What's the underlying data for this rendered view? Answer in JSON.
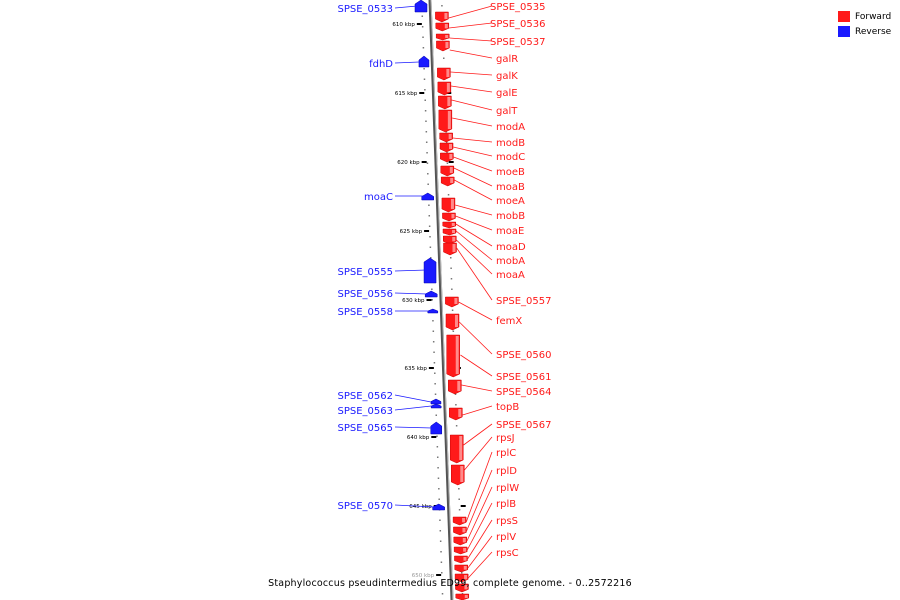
{
  "colors": {
    "forward": "#ff1a1a",
    "reverse": "#1a1aff",
    "axis": "#888888"
  },
  "legend": [
    {
      "label": "Forward",
      "color": "#ff1a1a"
    },
    {
      "label": "Reverse",
      "color": "#1a1aff"
    }
  ],
  "caption": "Staphylococcus pseudintermedius ED99, complete genome. - 0..2572216",
  "ticks": [
    "610 kbp",
    "615 kbp",
    "620 kbp",
    "625 kbp",
    "630 kbp",
    "635 kbp",
    "640 kbp",
    "645 kbp",
    "650 kbp"
  ],
  "reverse_genes": [
    "SPSE_0533",
    "fdhD",
    "moaC",
    "SPSE_0555",
    "SPSE_0556",
    "SPSE_0558",
    "SPSE_0562",
    "SPSE_0563",
    "SPSE_0565",
    "SPSE_0570"
  ],
  "forward_genes": [
    "SPSE_0535",
    "SPSE_0536",
    "SPSE_0537",
    "galR",
    "galK",
    "galE",
    "galT",
    "modA",
    "modB",
    "modC",
    "moeB",
    "moaB",
    "moeA",
    "mobB",
    "moaE",
    "moaD",
    "mobA",
    "moaA",
    "SPSE_0557",
    "femX",
    "SPSE_0560",
    "SPSE_0561",
    "SPSE_0564",
    "topB",
    "SPSE_0567",
    "rpsJ",
    "rplC",
    "rplD",
    "rplW",
    "rplB",
    "rpsS",
    "rplV",
    "rpsC"
  ]
}
